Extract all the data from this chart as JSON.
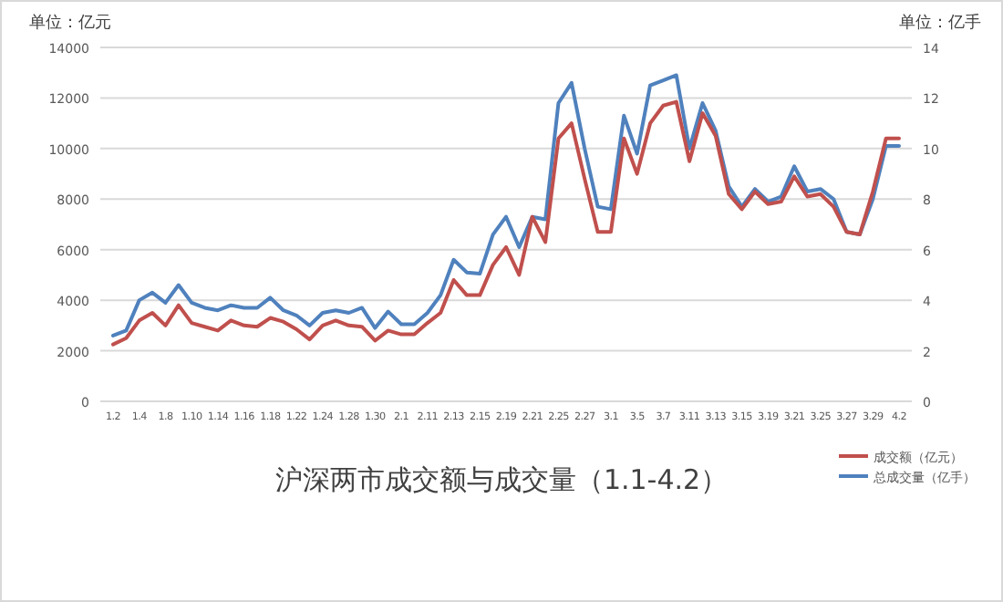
{
  "chart_data": {
    "type": "line",
    "title": "沪深两市成交额与成交量（1.1-4.2）",
    "ylabel": "单位：亿元",
    "y2label": "单位：亿手",
    "categories": [
      "1.2",
      null,
      "1.4",
      null,
      "1.8",
      null,
      "1.10",
      null,
      "1.14",
      null,
      "1.16",
      null,
      "1.18",
      null,
      "1.22",
      null,
      "1.24",
      null,
      "1.28",
      null,
      "1.30",
      null,
      "2.1",
      null,
      "2.11",
      null,
      "2.13",
      null,
      "2.15",
      null,
      "2.19",
      null,
      "2.21",
      null,
      "2.25",
      null,
      "2.27",
      null,
      "3.1",
      null,
      "3.5",
      null,
      "3.7",
      null,
      "3.11",
      null,
      "3.13",
      null,
      "3.15",
      null,
      "3.19",
      null,
      "3.21",
      null,
      "3.25",
      null,
      "3.27",
      null,
      "3.29",
      null,
      "4.2"
    ],
    "series": [
      {
        "name": "成交额（亿元）",
        "color": "#c0504d",
        "values": [
          2250,
          2500,
          3200,
          3500,
          3000,
          3800,
          3100,
          2950,
          2800,
          3200,
          3000,
          2950,
          3300,
          3150,
          2850,
          2450,
          3000,
          3200,
          3000,
          2950,
          2400,
          2800,
          2650,
          2650,
          3100,
          3500,
          4800,
          4200,
          4200,
          5400,
          6100,
          5000,
          7300,
          6300,
          10400,
          11000,
          8800,
          6700,
          6700,
          10400,
          9000,
          11000,
          11700,
          11850,
          9500,
          11400,
          10500,
          8200,
          7600,
          8300,
          7800,
          7900,
          8900,
          8100,
          8200,
          7700,
          6700,
          6600,
          8300,
          10400,
          10400
        ]
      },
      {
        "name": "总成交量（亿手）",
        "color": "#4f81bd",
        "axis": "y2",
        "values": [
          2.6,
          2.8,
          4.0,
          4.3,
          3.9,
          4.6,
          3.9,
          3.7,
          3.6,
          3.8,
          3.7,
          3.7,
          4.1,
          3.6,
          3.4,
          3.0,
          3.5,
          3.6,
          3.5,
          3.7,
          2.9,
          3.55,
          3.05,
          3.05,
          3.5,
          4.2,
          5.6,
          5.1,
          5.05,
          6.6,
          7.3,
          6.1,
          7.3,
          7.2,
          11.8,
          12.6,
          10.0,
          7.7,
          7.6,
          11.3,
          9.8,
          12.5,
          12.7,
          12.9,
          10.0,
          11.8,
          10.7,
          8.5,
          7.7,
          8.4,
          7.9,
          8.1,
          9.3,
          8.3,
          8.4,
          8.0,
          6.7,
          6.6,
          8.0,
          10.1,
          10.1
        ]
      }
    ],
    "ylim": [
      0,
      14000
    ],
    "yticks": [
      0,
      2000,
      4000,
      6000,
      8000,
      10000,
      12000,
      14000
    ],
    "y2lim": [
      0,
      14
    ],
    "y2ticks": [
      0,
      2,
      4,
      6,
      8,
      10,
      12,
      14
    ],
    "grid": "y",
    "legend": "bottom right",
    "line_style": "solid"
  }
}
